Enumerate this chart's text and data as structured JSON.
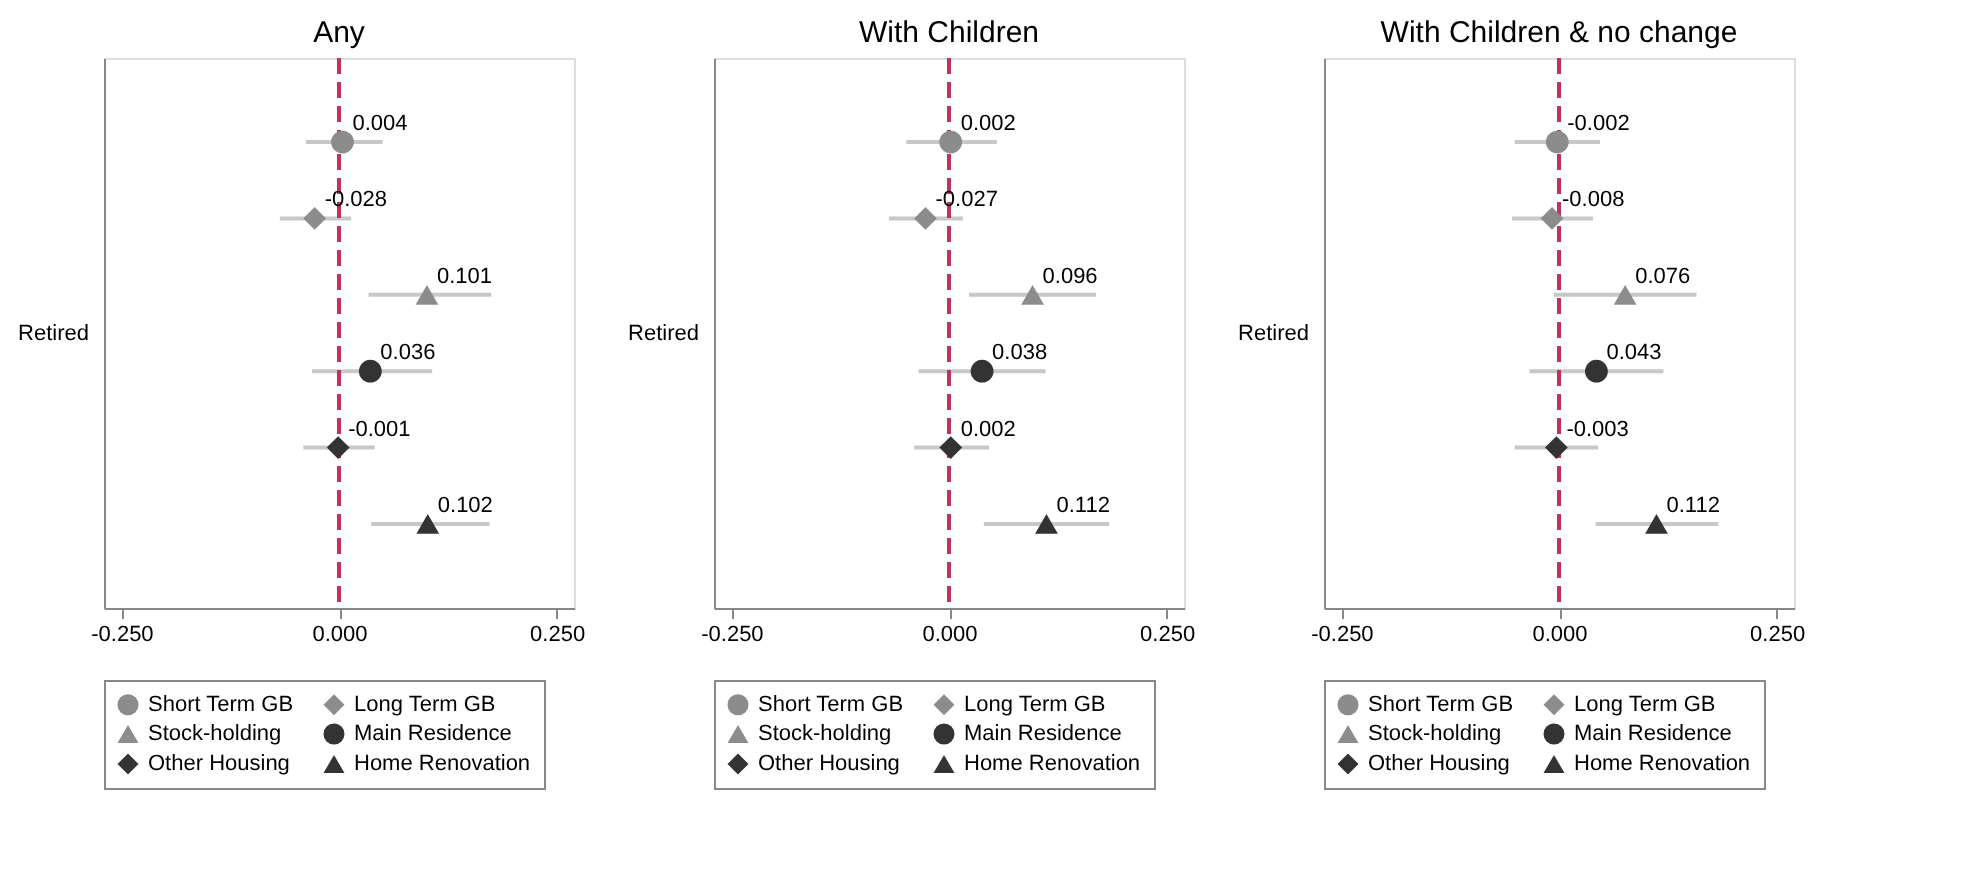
{
  "chart_data": [
    {
      "type": "scatter",
      "title": "Any",
      "ylabel": "Retired",
      "orientation": "horizontal",
      "categories": [
        null,
        null,
        null,
        null,
        null,
        null
      ],
      "xlim": [
        -0.27,
        0.27
      ],
      "xticks": [
        {
          "value": -0.25,
          "label": "-0.250"
        },
        {
          "value": 0,
          "label": "0.000"
        },
        {
          "value": 0.25,
          "label": "0.250"
        }
      ],
      "data_labels": true,
      "legend": "bottom",
      "ref_lines": [
        {
          "axis": "x",
          "value": 0,
          "color": "#c0325a",
          "line_style": "dashed"
        }
      ],
      "series": [
        {
          "name": "Short Term GB",
          "color": "#8c8c8c",
          "marker": "circle",
          "values": [
            0.004,
            null,
            null,
            null,
            null,
            null
          ],
          "errors": [
            [
              -0.038,
              0.05
            ],
            null,
            null,
            null,
            null,
            null
          ]
        },
        {
          "name": "Long Term GB",
          "color": "#8c8c8c",
          "marker": "diamond",
          "values": [
            null,
            -0.028,
            null,
            null,
            null,
            null
          ],
          "errors": [
            null,
            [
              -0.068,
              0.014
            ],
            null,
            null,
            null,
            null
          ]
        },
        {
          "name": "Stock-holding",
          "color": "#8c8c8c",
          "marker": "triangle",
          "values": [
            null,
            null,
            0.101,
            null,
            null,
            null
          ],
          "errors": [
            null,
            null,
            [
              0.034,
              0.175
            ],
            null,
            null,
            null
          ]
        },
        {
          "name": "Main Residence",
          "color": "#333333",
          "marker": "circle",
          "values": [
            null,
            null,
            null,
            0.036,
            null,
            null
          ],
          "errors": [
            null,
            null,
            null,
            [
              -0.031,
              0.107
            ],
            null,
            null
          ]
        },
        {
          "name": "Other Housing",
          "color": "#333333",
          "marker": "diamond",
          "values": [
            null,
            null,
            null,
            null,
            -0.001,
            null
          ],
          "errors": [
            null,
            null,
            null,
            null,
            [
              -0.041,
              0.041
            ],
            null
          ]
        },
        {
          "name": "Home Renovation",
          "color": "#333333",
          "marker": "triangle",
          "values": [
            null,
            null,
            null,
            null,
            null,
            0.102
          ],
          "errors": [
            null,
            null,
            null,
            null,
            null,
            [
              0.037,
              0.173
            ]
          ]
        }
      ]
    },
    {
      "type": "scatter",
      "title": "With Children",
      "ylabel": "Retired",
      "orientation": "horizontal",
      "categories": [
        null,
        null,
        null,
        null,
        null,
        null
      ],
      "xlim": [
        -0.27,
        0.27
      ],
      "xticks": [
        {
          "value": -0.25,
          "label": "-0.250"
        },
        {
          "value": 0,
          "label": "0.000"
        },
        {
          "value": 0.25,
          "label": "0.250"
        }
      ],
      "data_labels": true,
      "legend": "bottom",
      "ref_lines": [
        {
          "axis": "x",
          "value": 0,
          "color": "#c0325a",
          "line_style": "dashed"
        }
      ],
      "series": [
        {
          "name": "Short Term GB",
          "color": "#8c8c8c",
          "marker": "circle",
          "values": [
            0.002,
            null,
            null,
            null,
            null,
            null
          ],
          "errors": [
            [
              -0.049,
              0.055
            ],
            null,
            null,
            null,
            null,
            null
          ]
        },
        {
          "name": "Long Term GB",
          "color": "#8c8c8c",
          "marker": "diamond",
          "values": [
            null,
            -0.027,
            null,
            null,
            null,
            null
          ],
          "errors": [
            null,
            [
              -0.069,
              0.016
            ],
            null,
            null,
            null,
            null
          ]
        },
        {
          "name": "Stock-holding",
          "color": "#8c8c8c",
          "marker": "triangle",
          "values": [
            null,
            null,
            0.096,
            null,
            null,
            null
          ],
          "errors": [
            null,
            null,
            [
              0.023,
              0.169
            ],
            null,
            null,
            null
          ]
        },
        {
          "name": "Main Residence",
          "color": "#333333",
          "marker": "circle",
          "values": [
            null,
            null,
            null,
            0.038,
            null,
            null
          ],
          "errors": [
            null,
            null,
            null,
            [
              -0.035,
              0.111
            ],
            null,
            null
          ]
        },
        {
          "name": "Other Housing",
          "color": "#333333",
          "marker": "diamond",
          "values": [
            null,
            null,
            null,
            null,
            0.002,
            null
          ],
          "errors": [
            null,
            null,
            null,
            null,
            [
              -0.04,
              0.046
            ],
            null
          ]
        },
        {
          "name": "Home Renovation",
          "color": "#333333",
          "marker": "triangle",
          "values": [
            null,
            null,
            null,
            null,
            null,
            0.112
          ],
          "errors": [
            null,
            null,
            null,
            null,
            null,
            [
              0.04,
              0.184
            ]
          ]
        }
      ]
    },
    {
      "type": "scatter",
      "title": "With Children & no change",
      "ylabel": "Retired",
      "orientation": "horizontal",
      "categories": [
        null,
        null,
        null,
        null,
        null,
        null
      ],
      "xlim": [
        -0.27,
        0.27
      ],
      "xticks": [
        {
          "value": -0.25,
          "label": "-0.250"
        },
        {
          "value": 0,
          "label": "0.000"
        },
        {
          "value": 0.25,
          "label": "0.250"
        }
      ],
      "data_labels": true,
      "legend": "bottom",
      "ref_lines": [
        {
          "axis": "x",
          "value": 0,
          "color": "#c0325a",
          "line_style": "dashed"
        }
      ],
      "series": [
        {
          "name": "Short Term GB",
          "color": "#8c8c8c",
          "marker": "circle",
          "values": [
            -0.002,
            null,
            null,
            null,
            null,
            null
          ],
          "errors": [
            [
              -0.051,
              0.047
            ],
            null,
            null,
            null,
            null,
            null
          ]
        },
        {
          "name": "Long Term GB",
          "color": "#8c8c8c",
          "marker": "diamond",
          "values": [
            null,
            -0.008,
            null,
            null,
            null,
            null
          ],
          "errors": [
            null,
            [
              -0.054,
              0.039
            ],
            null,
            null,
            null,
            null
          ]
        },
        {
          "name": "Stock-holding",
          "color": "#8c8c8c",
          "marker": "triangle",
          "values": [
            null,
            null,
            0.076,
            null,
            null,
            null
          ],
          "errors": [
            null,
            null,
            [
              -0.006,
              0.158
            ],
            null,
            null,
            null
          ]
        },
        {
          "name": "Main Residence",
          "color": "#333333",
          "marker": "circle",
          "values": [
            null,
            null,
            null,
            0.043,
            null,
            null
          ],
          "errors": [
            null,
            null,
            null,
            [
              -0.034,
              0.12
            ],
            null,
            null
          ]
        },
        {
          "name": "Other Housing",
          "color": "#333333",
          "marker": "diamond",
          "values": [
            null,
            null,
            null,
            null,
            -0.003,
            null
          ],
          "errors": [
            null,
            null,
            null,
            null,
            [
              -0.051,
              0.045
            ],
            null
          ]
        },
        {
          "name": "Home Renovation",
          "color": "#333333",
          "marker": "triangle",
          "values": [
            null,
            null,
            null,
            null,
            null,
            0.112
          ],
          "errors": [
            null,
            null,
            null,
            null,
            null,
            [
              0.042,
              0.183
            ]
          ]
        }
      ]
    }
  ]
}
